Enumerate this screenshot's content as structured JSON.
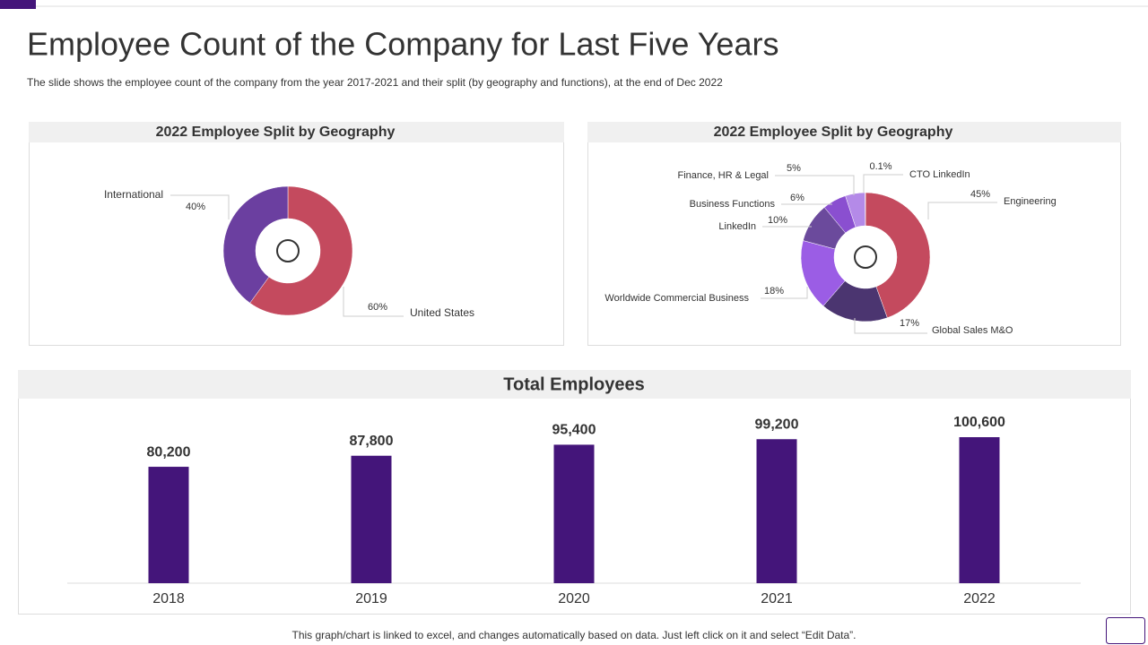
{
  "header": {
    "title": "Employee Count of the Company for Last Five Years",
    "subtitle": "The slide shows the employee count of the company from the year 2017-2021 and their split (by geography and functions), at the end of Dec 2022"
  },
  "footer": "This graph/chart is linked to excel, and changes automatically based on data. Just left click on it and select “Edit Data”.",
  "chart_data": [
    {
      "type": "donut",
      "title": "2022 Employee Split by Geography",
      "categories": [
        "United States",
        "International"
      ],
      "values": [
        60,
        40
      ],
      "value_labels": [
        "60%",
        "40%"
      ],
      "colors": [
        "#c44a5e",
        "#6b3fa0"
      ]
    },
    {
      "type": "donut",
      "title": "2022 Employee Split by Geography",
      "categories": [
        "Engineering",
        "Global Sales M&O",
        "Worldwide Commercial Business",
        "LinkedIn",
        "Business Functions",
        "Finance, HR & Legal",
        "CTO LinkedIn"
      ],
      "values": [
        45,
        17,
        18,
        10,
        6,
        5,
        0.1
      ],
      "value_labels": [
        "45%",
        "17%",
        "18%",
        "10%",
        "6%",
        "5%",
        "0.1%"
      ],
      "colors": [
        "#c44a5e",
        "#4b3570",
        "#9b5de5",
        "#6b4a9c",
        "#8a4fd0",
        "#b48ae8",
        "#d9c2f5"
      ]
    },
    {
      "type": "bar",
      "title": "Total Employees",
      "categories": [
        "2018",
        "2019",
        "2020",
        "2021",
        "2022"
      ],
      "values": [
        80200,
        87800,
        95400,
        99200,
        100600
      ],
      "value_labels": [
        "80,200",
        "87,800",
        "95,400",
        "99,200",
        "100,600"
      ],
      "color": "#44157a"
    }
  ]
}
